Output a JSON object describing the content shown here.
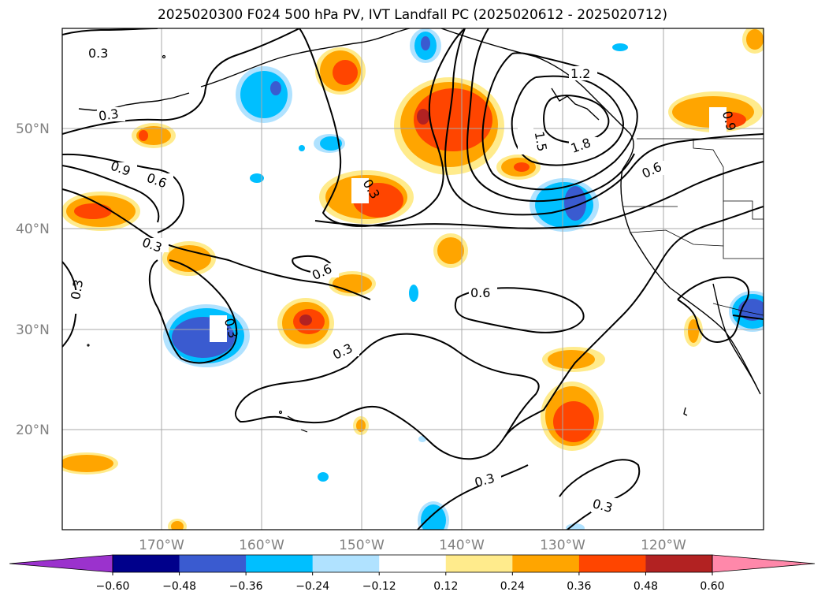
{
  "title": "2025020300 F024 500 hPa PV, IVT Landfall PC (2025020612 - 2025020712)",
  "lat_ticks": [
    "50°N",
    "40°N",
    "30°N",
    "20°N"
  ],
  "lon_ticks": [
    "170°W",
    "160°W",
    "150°W",
    "140°W",
    "130°W",
    "120°W"
  ],
  "colorbar": {
    "ticks": [
      "−0.60",
      "−0.48",
      "−0.36",
      "−0.24",
      "−0.12",
      "0.12",
      "0.24",
      "0.36",
      "0.48",
      "0.60"
    ],
    "colors": [
      "#9b32cd",
      "#00008b",
      "#3a5bd0",
      "#00bfff",
      "#b0e2ff",
      "#ffffff",
      "#ffeb8c",
      "#ffa500",
      "#ff4500",
      "#b22222",
      "#ff88aa"
    ]
  },
  "contour_labels": [
    "0.3",
    "0.3",
    "0.9",
    "0.6",
    "0.3",
    "0.6",
    "0.3",
    "0.3",
    "0.3",
    "0.6",
    "1.2",
    "1.5",
    "1.8",
    "0.6",
    "0.9",
    "0.3",
    "0.3",
    "0.3"
  ],
  "colors": {
    "blue_dark": "#3a5bd0",
    "blue": "#00bfff",
    "blue_light": "#b0e2ff",
    "yellow": "#ffeb8c",
    "orange": "#ffa500",
    "red_orange": "#ff4500",
    "dark_red": "#b22222"
  }
}
